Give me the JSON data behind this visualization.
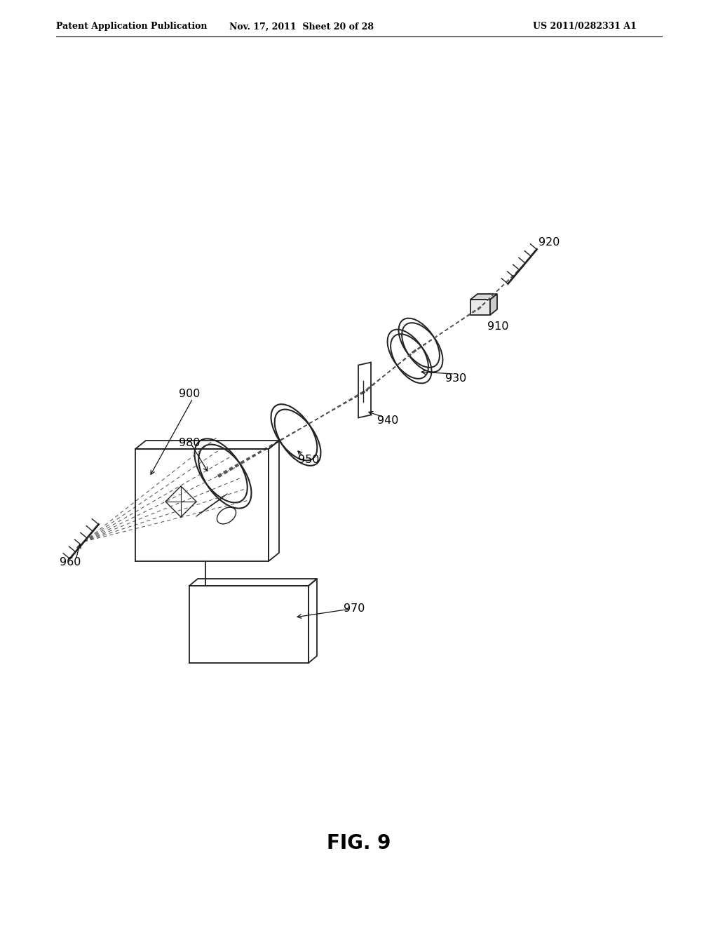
{
  "header_left": "Patent Application Publication",
  "header_mid": "Nov. 17, 2011  Sheet 20 of 28",
  "header_right": "US 2011/0282331 A1",
  "figure_label": "FIG. 9",
  "background_color": "#ffffff",
  "line_color": "#222222",
  "ray_color": "#555555"
}
